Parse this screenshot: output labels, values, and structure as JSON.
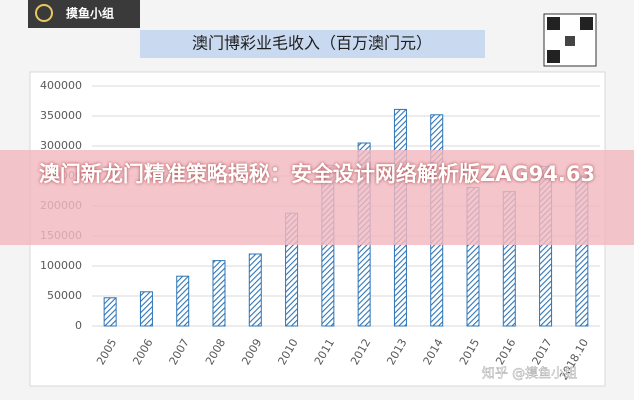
{
  "chart_data": {
    "type": "bar",
    "title": "澳门博彩业毛收入（百万澳门元）",
    "categories": [
      "2005",
      "2006",
      "2007",
      "2008",
      "2009",
      "2010",
      "2011",
      "2012",
      "2013",
      "2014",
      "2015",
      "2016",
      "2017",
      "2018.10"
    ],
    "values": [
      47000,
      57000,
      83000,
      109000,
      120000,
      188000,
      268000,
      305000,
      361000,
      352000,
      231000,
      224000,
      266000,
      250000
    ],
    "color": "#2e75b6",
    "ylim": [
      0,
      400000
    ],
    "yticks": [
      0,
      50000,
      100000,
      150000,
      200000,
      250000,
      300000,
      350000,
      400000
    ],
    "grid": true
  },
  "logo": "摸鱼小组",
  "banner": "澳门新龙门精准策略揭秘：安全设计网络解析版ZAG94.63",
  "watermark": "知乎 @摸鱼小组"
}
